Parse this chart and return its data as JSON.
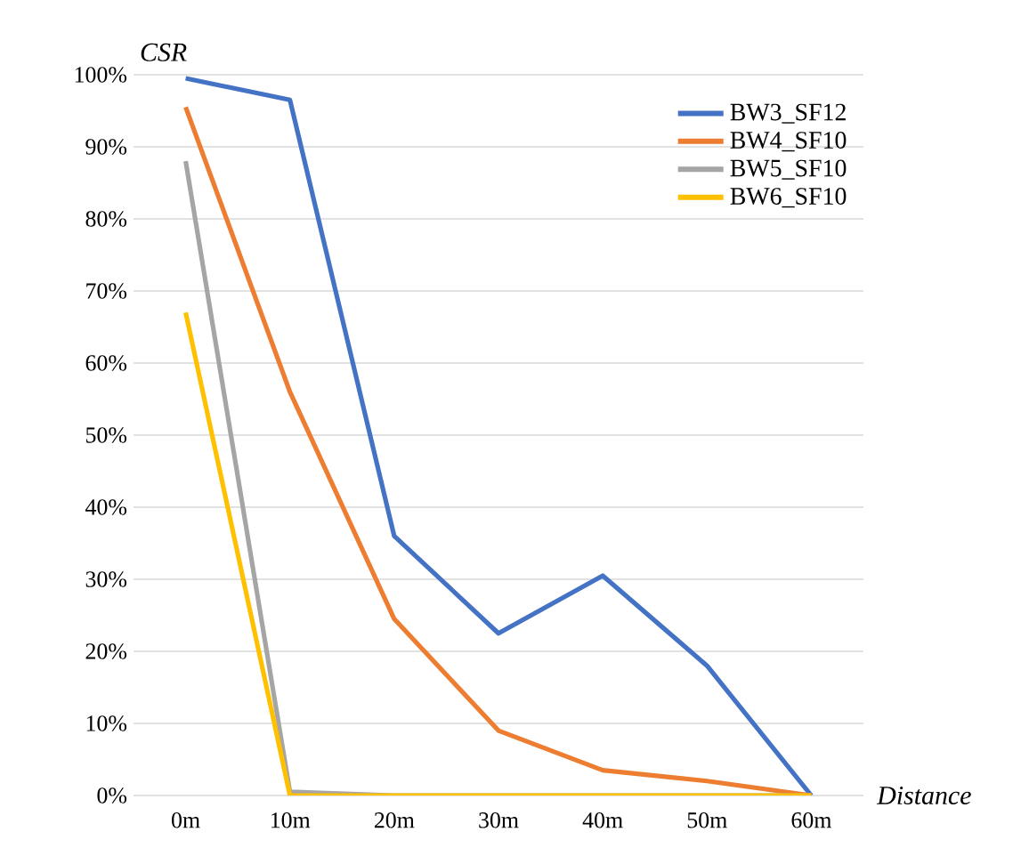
{
  "chart_data": {
    "type": "line",
    "xlabel": "Distance",
    "ylabel": "CSR",
    "categories": [
      "0m",
      "10m",
      "20m",
      "30m",
      "40m",
      "50m",
      "60m"
    ],
    "series": [
      {
        "name": "BW3_SF12",
        "color": "#4472c4",
        "values": [
          99.5,
          96.5,
          36,
          22.5,
          30.5,
          18,
          0
        ]
      },
      {
        "name": "BW4_SF10",
        "color": "#ed7d31",
        "values": [
          95.5,
          56,
          24.5,
          9,
          3.5,
          2,
          0
        ]
      },
      {
        "name": "BW5_SF10",
        "color": "#a5a5a5",
        "values": [
          88,
          0.5,
          0,
          0,
          0,
          0,
          0
        ]
      },
      {
        "name": "BW6_SF10",
        "color": "#ffc000",
        "values": [
          67,
          0,
          0,
          0,
          0,
          0,
          0
        ]
      }
    ],
    "ylim": [
      0,
      100
    ],
    "yticks": [
      {
        "value": 0,
        "label": "0%"
      },
      {
        "value": 10,
        "label": "10%"
      },
      {
        "value": 20,
        "label": "20%"
      },
      {
        "value": 30,
        "label": "30%"
      },
      {
        "value": 40,
        "label": "40%"
      },
      {
        "value": 50,
        "label": "50%"
      },
      {
        "value": 60,
        "label": "60%"
      },
      {
        "value": 70,
        "label": "70%"
      },
      {
        "value": 80,
        "label": "80%"
      },
      {
        "value": 90,
        "label": "90%"
      },
      {
        "value": 100,
        "label": "100%"
      }
    ],
    "grid": "y",
    "legend": "top right",
    "marker": "none",
    "line_style": "solid"
  }
}
